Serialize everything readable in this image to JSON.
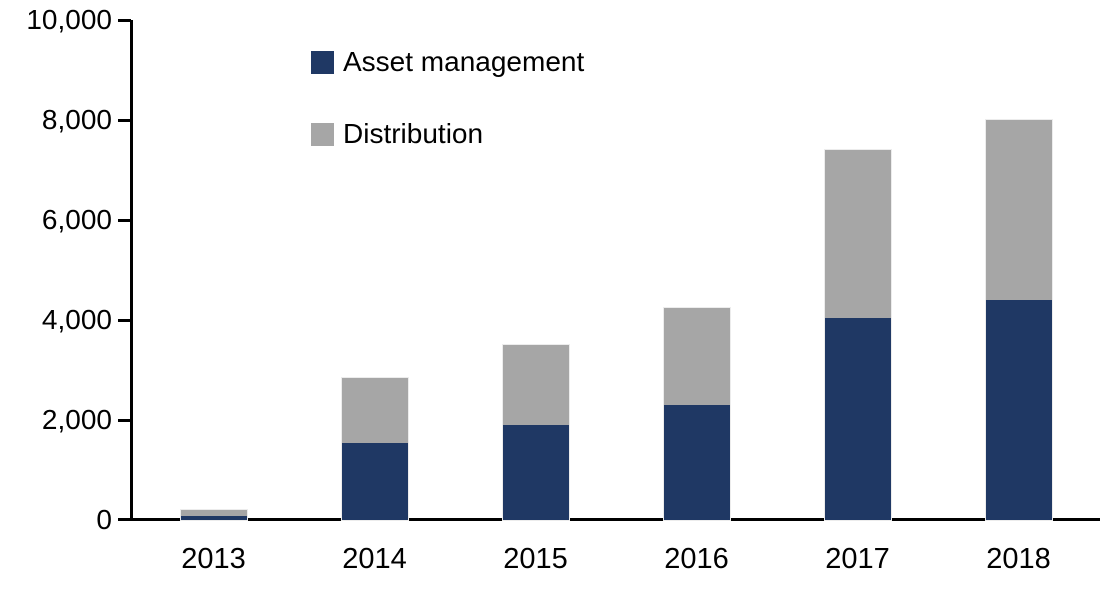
{
  "chart_data": {
    "type": "bar",
    "stacked": true,
    "title": "",
    "xlabel": "",
    "ylabel": "",
    "categories": [
      "2013",
      "2014",
      "2015",
      "2016",
      "2017",
      "2018"
    ],
    "series": [
      {
        "name": "Asset management",
        "color": "#1f3864",
        "values": [
          90,
          1550,
          1900,
          2300,
          4050,
          4400
        ]
      },
      {
        "name": "Distribution",
        "color": "#a6a6a6",
        "values": [
          110,
          1300,
          1600,
          1950,
          3350,
          3600
        ]
      }
    ],
    "totals": [
      200,
      2850,
      3500,
      4250,
      7400,
      8000
    ],
    "ylim": [
      0,
      10000
    ],
    "ytick_interval": 2000,
    "ytick_labels": [
      "0",
      "2,000",
      "4,000",
      "6,000",
      "8,000",
      "10,000"
    ],
    "grid": false,
    "legend_position": "top-left",
    "axis_color": "#000000",
    "text_color": "#000000",
    "background_color": "#ffffff"
  }
}
